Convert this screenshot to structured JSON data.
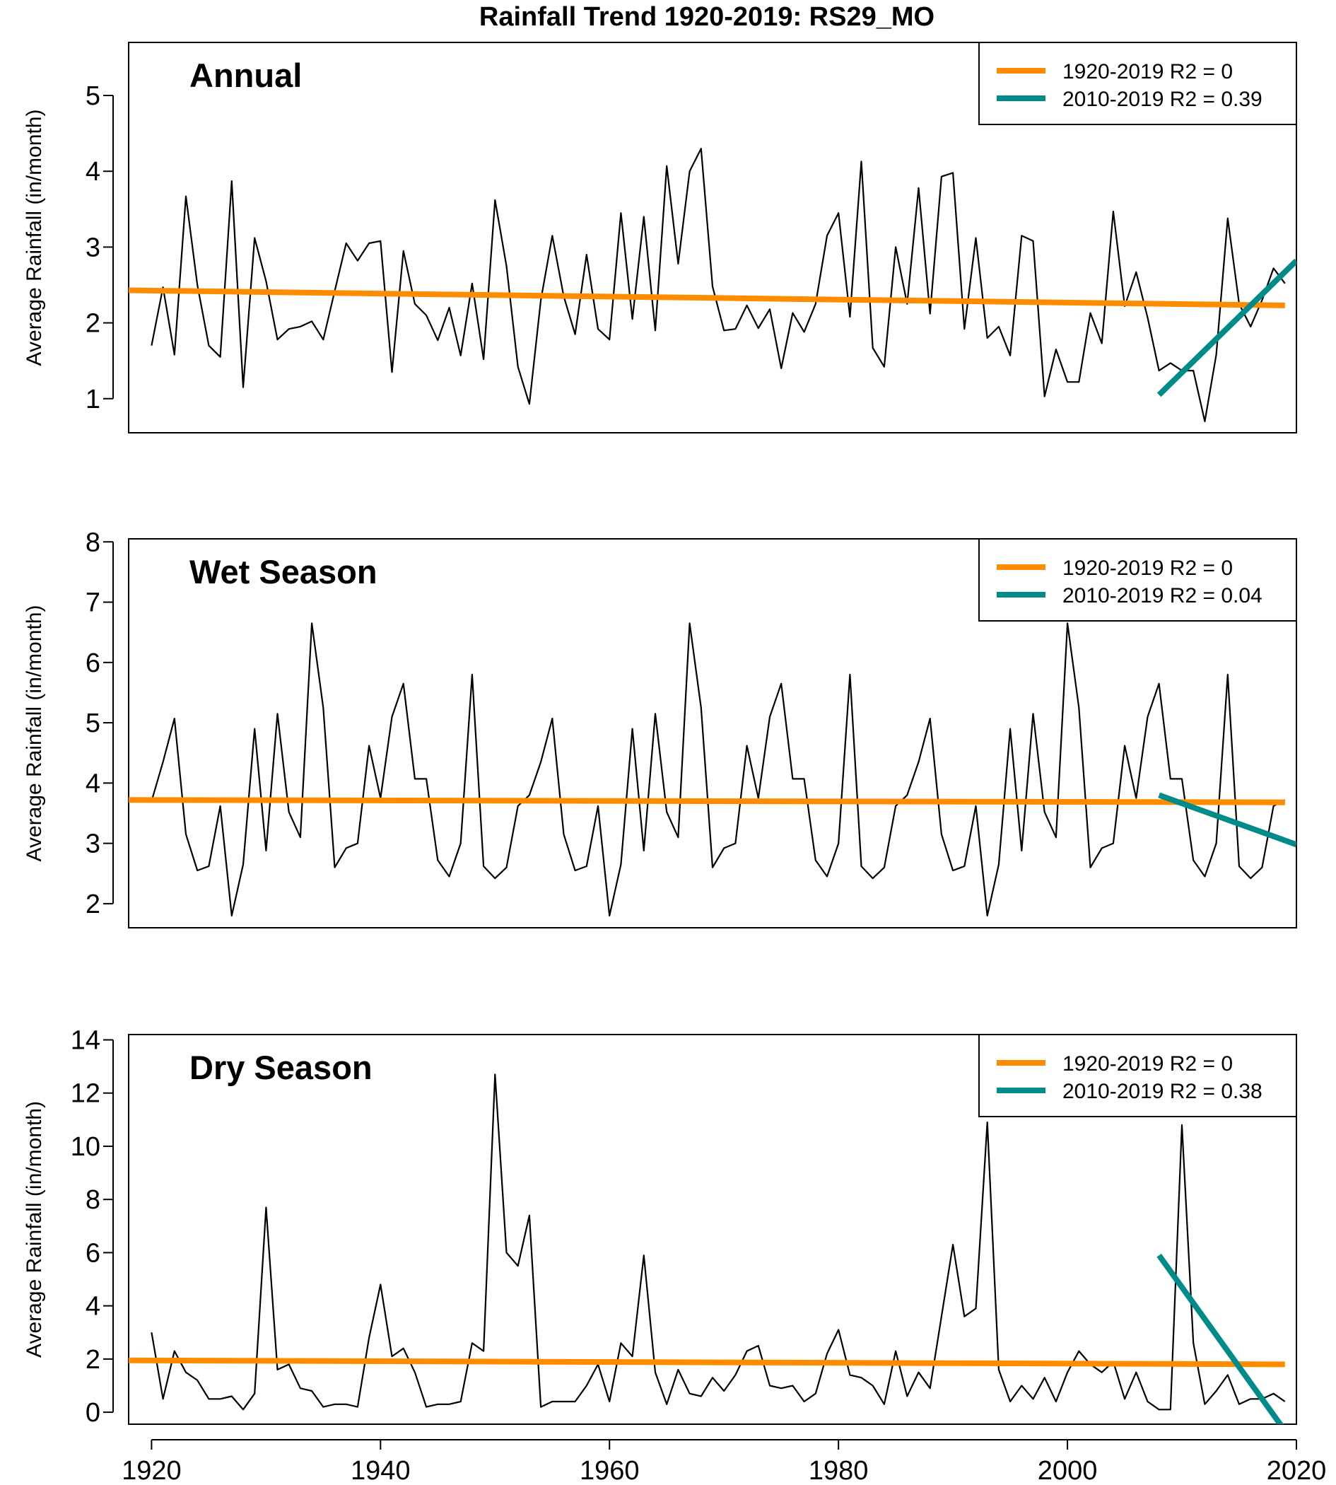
{
  "figure": {
    "title": "Rainfall Trend 1920-2019: RS29_MO"
  },
  "colors": {
    "trend_long": "#FF8C00",
    "trend_recent": "#008B8B",
    "data_line": "#000000"
  },
  "chart_data": [
    {
      "type": "line",
      "title": "Annual",
      "ylabel": "Average Rainfall (in/month)",
      "xlabel": "",
      "xlim": [
        1918,
        2020
      ],
      "ylim": [
        0.55,
        5.7
      ],
      "xticks": [
        1920,
        1940,
        1960,
        1980,
        2000,
        2020
      ],
      "yticks": [
        1,
        2,
        3,
        4,
        5
      ],
      "show_xticks": false,
      "legend": {
        "position": "top-right",
        "entries": [
          {
            "label": "1920-2019  R2 = 0",
            "color": "#FF8C00"
          },
          {
            "label": "2010-2019  R2 = 0.39",
            "color": "#008B8B"
          }
        ]
      },
      "series": [
        {
          "x": [
            1920,
            1921,
            1922,
            1923,
            1924,
            1925,
            1926,
            1927,
            1928,
            1929,
            1930,
            1931,
            1932,
            1933,
            1934,
            1935,
            1936,
            1937,
            1938,
            1939,
            1940,
            1941,
            1942,
            1943,
            1944,
            1945,
            1946,
            1947,
            1948,
            1949,
            1950,
            1951,
            1952,
            1953,
            1954,
            1955,
            1956,
            1957,
            1958,
            1959,
            1960,
            1961,
            1962,
            1963,
            1964,
            1965,
            1966,
            1967,
            1968,
            1969,
            1970,
            1971,
            1972,
            1973,
            1974,
            1975,
            1976,
            1977,
            1978,
            1979,
            1980,
            1981,
            1982,
            1983,
            1984,
            1985,
            1986,
            1987,
            1988,
            1989,
            1990,
            1991,
            1992,
            1993,
            1994,
            1995,
            1996,
            1997,
            1998,
            1999,
            2000,
            2001,
            2002,
            2003,
            2004,
            2005,
            2006,
            2007,
            2008,
            2009,
            2010,
            2011,
            2012,
            2013,
            2014,
            2015,
            2016,
            2017,
            2018,
            2019
          ],
          "values": [
            1.7,
            2.47,
            1.58,
            3.67,
            2.5,
            1.7,
            1.55,
            3.87,
            1.15,
            3.12,
            2.55,
            1.78,
            1.92,
            1.95,
            2.02,
            1.78,
            2.42,
            3.05,
            2.82,
            3.05,
            3.08,
            1.35,
            2.95,
            2.25,
            2.1,
            1.77,
            2.2,
            1.57,
            2.52,
            1.52,
            3.62,
            2.75,
            1.42,
            0.93,
            2.3,
            3.15,
            2.35,
            1.85,
            2.9,
            1.92,
            1.78,
            3.45,
            2.05,
            3.4,
            1.9,
            4.07,
            2.78,
            4.0,
            4.3,
            2.48,
            1.9,
            1.92,
            2.23,
            1.93,
            2.18,
            1.4,
            2.13,
            1.88,
            2.25,
            3.15,
            3.45,
            2.08,
            4.13,
            1.67,
            1.42,
            3.0,
            2.25,
            3.78,
            2.12,
            3.93,
            3.98,
            1.92,
            3.12,
            1.8,
            1.95,
            1.57,
            3.15,
            3.08,
            1.03,
            1.65,
            1.22,
            1.22,
            2.13,
            1.73,
            3.47,
            2.22,
            2.67,
            2.07,
            1.37,
            1.47,
            1.37,
            1.37,
            0.7,
            1.58,
            3.38,
            2.25,
            1.95,
            2.3,
            2.72,
            2.52
          ]
        }
      ],
      "trend_lines": [
        {
          "label": "1920-2019",
          "x": [
            1918,
            2019
          ],
          "values": [
            2.43,
            2.23
          ]
        },
        {
          "label": "2010-2019",
          "x": [
            2008,
            2020
          ],
          "values": [
            1.05,
            2.82
          ]
        }
      ]
    },
    {
      "type": "line",
      "title": "Wet Season",
      "ylabel": "Average Rainfall (in/month)",
      "xlabel": "",
      "xlim": [
        1918,
        2020
      ],
      "ylim": [
        1.6,
        8.05
      ],
      "xticks": [
        1920,
        1940,
        1960,
        1980,
        2000,
        2020
      ],
      "yticks": [
        2,
        3,
        4,
        5,
        6,
        7,
        8
      ],
      "show_xticks": false,
      "legend": {
        "position": "top-right",
        "entries": [
          {
            "label": "1920-2019  R2 = 0",
            "color": "#FF8C00"
          },
          {
            "label": "2010-2019  R2 = 0.04",
            "color": "#008B8B"
          }
        ]
      },
      "series": [
        {
          "x": [
            1920,
            1921,
            1922,
            1923,
            1924,
            1925,
            1926,
            1927,
            1928,
            1929,
            1930,
            1931,
            1932,
            1933,
            1934,
            1935,
            1936,
            1937,
            1938,
            1939,
            1940,
            1941,
            1942,
            1943,
            1944,
            1945,
            1946,
            1947,
            1948,
            1949,
            1950,
            1951,
            1952,
            1953,
            1954,
            1955,
            1956,
            1957,
            1958,
            1959,
            1960,
            1961,
            1962,
            1963,
            1964,
            1965,
            1966,
            1967,
            1968,
            1969,
            1970,
            1971,
            1972,
            1973,
            1974,
            1975,
            1976,
            1977,
            1978,
            1979,
            1980,
            1981,
            1982,
            1983,
            1984,
            1985,
            1986,
            1987,
            1988,
            1989,
            1990,
            1991,
            1992,
            1993,
            1994,
            1995,
            1996,
            1997,
            1998,
            1999,
            2000,
            2001,
            2002,
            2003,
            2004,
            2005,
            2006,
            2007,
            2008,
            2009,
            2010,
            2011,
            2012,
            2013,
            2014,
            2015,
            2016,
            2017,
            2018,
            2019
          ],
          "values": [
            3.7,
            4.35,
            5.07,
            3.15,
            2.55,
            2.62,
            3.62,
            1.8,
            2.65,
            4.9,
            2.88,
            5.15,
            3.52,
            3.1,
            6.65,
            5.25,
            2.6,
            2.92,
            3.0,
            4.62,
            3.75,
            5.1,
            5.65,
            4.07,
            4.07,
            2.72,
            2.45,
            3.0,
            5.8,
            2.62,
            2.42,
            2.6,
            3.62,
            3.8,
            4.35,
            5.07,
            3.15,
            2.55,
            2.62,
            3.62,
            1.8,
            2.65,
            4.9,
            2.88,
            5.15,
            3.52,
            3.1,
            6.65,
            5.25,
            2.6,
            2.92,
            3.0,
            4.62,
            3.75,
            5.1,
            5.65,
            4.07,
            4.07,
            2.72,
            2.45,
            3.0,
            5.8,
            2.62,
            2.42,
            2.6,
            3.62,
            3.8,
            4.35,
            5.07,
            3.15,
            2.55,
            2.62,
            3.62,
            1.8,
            2.65,
            4.9,
            2.88,
            5.15,
            3.52,
            3.1,
            6.65,
            5.25,
            2.6,
            2.92,
            3.0,
            4.62,
            3.75,
            5.1,
            5.65,
            4.07,
            4.07,
            2.72,
            2.45,
            3.0,
            5.8,
            2.62,
            2.42,
            2.6,
            3.62,
            3.72
          ]
        }
      ],
      "trend_lines": [
        {
          "label": "1920-2019",
          "x": [
            1918,
            2019
          ],
          "values": [
            3.72,
            3.68
          ]
        },
        {
          "label": "2010-2019",
          "x": [
            2008,
            2020
          ],
          "values": [
            3.8,
            2.98
          ]
        }
      ]
    },
    {
      "type": "line",
      "title": "Dry Season",
      "ylabel": "Average Rainfall (in/month)",
      "xlabel": "",
      "xlim": [
        1918,
        2020
      ],
      "ylim": [
        -0.45,
        14.2
      ],
      "xticks": [
        1920,
        1940,
        1960,
        1980,
        2000,
        2020
      ],
      "yticks": [
        0,
        2,
        4,
        6,
        8,
        10,
        12,
        14
      ],
      "show_xticks": true,
      "legend": {
        "position": "top-right",
        "entries": [
          {
            "label": "1920-2019  R2 = 0",
            "color": "#FF8C00"
          },
          {
            "label": "2010-2019  R2 = 0.38",
            "color": "#008B8B"
          }
        ]
      },
      "series": [
        {
          "x": [
            1920,
            1921,
            1922,
            1923,
            1924,
            1925,
            1926,
            1927,
            1928,
            1929,
            1930,
            1931,
            1932,
            1933,
            1934,
            1935,
            1936,
            1937,
            1938,
            1939,
            1940,
            1941,
            1942,
            1943,
            1944,
            1945,
            1946,
            1947,
            1948,
            1949,
            1950,
            1951,
            1952,
            1953,
            1954,
            1955,
            1956,
            1957,
            1958,
            1959,
            1960,
            1961,
            1962,
            1963,
            1964,
            1965,
            1966,
            1967,
            1968,
            1969,
            1970,
            1971,
            1972,
            1973,
            1974,
            1975,
            1976,
            1977,
            1978,
            1979,
            1980,
            1981,
            1982,
            1983,
            1984,
            1985,
            1986,
            1987,
            1988,
            1989,
            1990,
            1991,
            1992,
            1993,
            1994,
            1995,
            1996,
            1997,
            1998,
            1999,
            2000,
            2001,
            2002,
            2003,
            2004,
            2005,
            2006,
            2007,
            2008,
            2009,
            2010,
            2011,
            2012,
            2013,
            2014,
            2015,
            2016,
            2017,
            2018,
            2019
          ],
          "values": [
            3.0,
            0.5,
            2.3,
            1.5,
            1.2,
            0.5,
            0.5,
            0.6,
            0.1,
            0.7,
            7.7,
            1.6,
            1.8,
            0.9,
            0.8,
            0.2,
            0.3,
            0.3,
            0.2,
            2.8,
            4.8,
            2.1,
            2.4,
            1.5,
            0.2,
            0.3,
            0.3,
            0.4,
            2.6,
            2.3,
            12.7,
            6.0,
            5.5,
            7.4,
            0.2,
            0.4,
            0.4,
            0.4,
            1.0,
            1.8,
            0.4,
            2.6,
            2.1,
            5.9,
            1.5,
            0.3,
            1.6,
            0.7,
            0.6,
            1.3,
            0.8,
            1.4,
            2.3,
            2.5,
            1.0,
            0.9,
            1.0,
            0.4,
            0.7,
            2.2,
            3.1,
            1.4,
            1.3,
            1.0,
            0.3,
            2.3,
            0.6,
            1.5,
            0.9,
            3.6,
            6.3,
            3.6,
            3.9,
            10.9,
            1.6,
            0.4,
            1.0,
            0.5,
            1.3,
            0.4,
            1.5,
            2.3,
            1.8,
            1.5,
            1.9,
            0.5,
            1.5,
            0.4,
            0.1,
            0.1,
            10.8,
            2.6,
            0.3,
            0.8,
            1.4,
            0.3,
            0.5,
            0.5,
            0.7,
            0.4
          ]
        }
      ],
      "trend_lines": [
        {
          "label": "1920-2019",
          "x": [
            1918,
            2019
          ],
          "values": [
            1.95,
            1.8
          ]
        },
        {
          "label": "2010-2019",
          "x": [
            2008,
            2020
          ],
          "values": [
            5.9,
            -1.3
          ]
        }
      ]
    }
  ]
}
